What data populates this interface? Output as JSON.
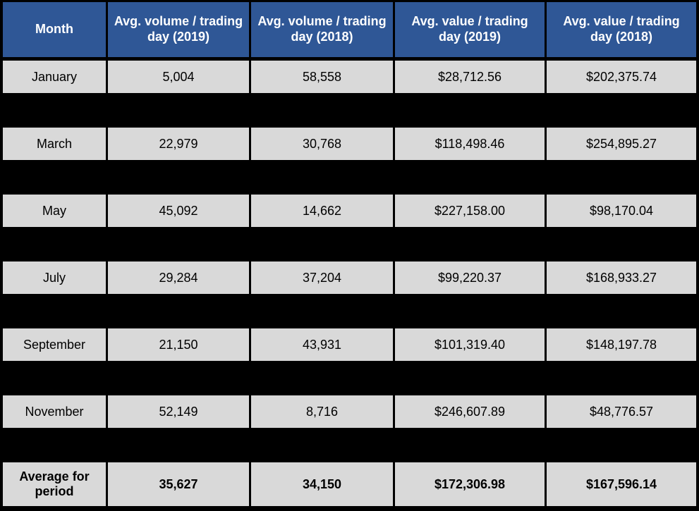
{
  "colors": {
    "header_bg": "#2f5796",
    "header_text": "#ffffff",
    "row_bg": "#d9d9d9",
    "grid_and_redaction": "#000000",
    "data_text": "#000000"
  },
  "chart_data": {
    "type": "table",
    "columns": [
      "Month",
      "Avg. volume / trading day (2019)",
      "Avg. volume / trading day (2018)",
      "Avg. value / trading day (2019)",
      "Avg. value / trading day (2018)"
    ],
    "rows": [
      [
        "January",
        "5,004",
        "58,558",
        "$28,712.56",
        "$202,375.74"
      ],
      [
        "March",
        "22,979",
        "30,768",
        "$118,498.46",
        "$254,895.27"
      ],
      [
        "May",
        "45,092",
        "14,662",
        "$227,158.00",
        "$98,170.04"
      ],
      [
        "July",
        "29,284",
        "37,204",
        "$99,220.37",
        "$168,933.27"
      ],
      [
        "September",
        "21,150",
        "43,931",
        "$101,319.40",
        "$148,197.78"
      ],
      [
        "November",
        "52,149",
        "8,716",
        "$246,607.89",
        "$48,776.57"
      ],
      [
        "Average for period",
        "35,627",
        "34,150",
        "$172,306.98",
        "$167,596.14"
      ]
    ]
  }
}
